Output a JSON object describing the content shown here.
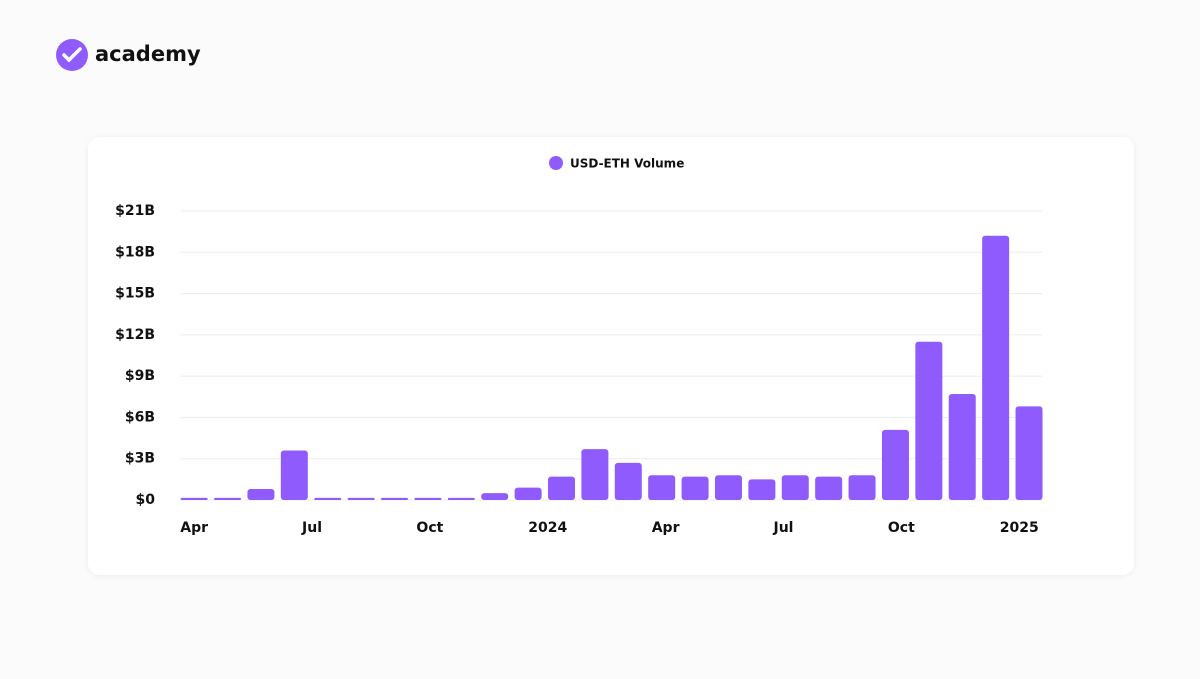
{
  "brand": "academy",
  "chart_data": {
    "type": "bar",
    "series": [
      {
        "name": "USD-ETH Volume",
        "color": "#8f5bfc",
        "x": [
          0,
          0.85,
          1.7,
          2.55,
          3.4,
          4.25,
          5.1,
          5.95,
          6.8,
          7.65,
          8.5,
          9.35,
          10.2,
          11.05,
          11.9,
          12.75,
          13.6,
          14.45,
          15.3,
          16.15,
          17,
          17.85,
          18.7,
          19.55,
          20.4,
          21.25
        ],
        "values": [
          0.15,
          0.15,
          0.8,
          3.6,
          0.15,
          0.15,
          0.15,
          0.15,
          0.15,
          0.5,
          0.9,
          1.7,
          3.7,
          2.7,
          1.8,
          1.7,
          1.8,
          1.5,
          1.8,
          1.7,
          1.8,
          5.1,
          11.5,
          7.7,
          19.2,
          6.8
        ]
      }
    ],
    "xlim": [
      -0.36,
      21.58
    ],
    "xticks": [
      {
        "value": 0,
        "label": "Apr"
      },
      {
        "value": 3,
        "label": "Jul"
      },
      {
        "value": 6,
        "label": "Oct"
      },
      {
        "value": 9,
        "label": "2024"
      },
      {
        "value": 12,
        "label": "Apr"
      },
      {
        "value": 15,
        "label": "Jul"
      },
      {
        "value": 18,
        "label": "Oct"
      },
      {
        "value": 21,
        "label": "2025"
      }
    ],
    "ylim": [
      0,
      21
    ],
    "yticks": [
      {
        "value": 0,
        "label": "$0"
      },
      {
        "value": 3,
        "label": "$3B"
      },
      {
        "value": 6,
        "label": "$6B"
      },
      {
        "value": 9,
        "label": "$9B"
      },
      {
        "value": 12,
        "label": "$12B"
      },
      {
        "value": 15,
        "label": "$15B"
      },
      {
        "value": 18,
        "label": "$18B"
      },
      {
        "value": 21,
        "label": "$21B"
      }
    ],
    "grid": true,
    "legend": "top"
  }
}
